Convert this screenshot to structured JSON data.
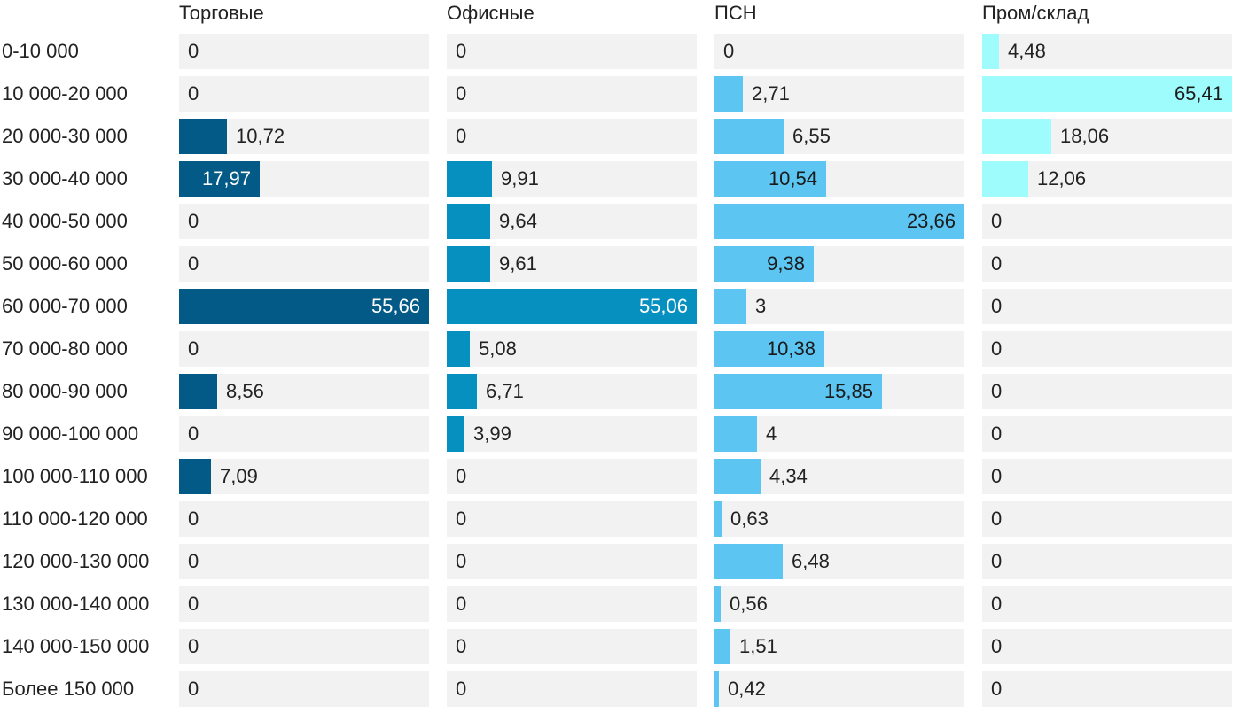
{
  "chart_data": {
    "type": "bar",
    "orientation": "horizontal",
    "layout": "small-multiples",
    "categories": [
      "0-10 000",
      "10 000-20 000",
      "20 000-30 000",
      "30 000-40 000",
      "40 000-50 000",
      "50 000-60 000",
      "60 000-70 000",
      "70 000-80 000",
      "80 000-90 000",
      "90 000-100 000",
      "100 000-110 000",
      "110 000-120 000",
      "120 000-130 000",
      "130 000-140 000",
      "140 000-150 000",
      "Более 150 000"
    ],
    "series": [
      {
        "name": "Торговые",
        "color": "#035a86",
        "values": [
          0,
          0,
          10.72,
          17.97,
          0,
          0,
          55.66,
          0,
          8.56,
          0,
          7.09,
          0,
          0,
          0,
          0,
          0
        ],
        "labels": [
          "0",
          "0",
          "10,72",
          "17,97",
          "0",
          "0",
          "55,66",
          "0",
          "8,56",
          "0",
          "7,09",
          "0",
          "0",
          "0",
          "0",
          "0"
        ],
        "xlim": [
          0,
          55.66
        ]
      },
      {
        "name": "Офисные",
        "color": "#0590bf",
        "values": [
          0,
          0,
          0,
          9.91,
          9.64,
          9.61,
          55.06,
          5.08,
          6.71,
          3.99,
          0,
          0,
          0,
          0,
          0,
          0
        ],
        "labels": [
          "0",
          "0",
          "0",
          "9,91",
          "9,64",
          "9,61",
          "55,06",
          "5,08",
          "6,71",
          "3,99",
          "0",
          "0",
          "0",
          "0",
          "0",
          "0"
        ],
        "xlim": [
          0,
          55.06
        ]
      },
      {
        "name": "ПСН",
        "color": "#5cc5f2",
        "values": [
          0,
          2.71,
          6.55,
          10.54,
          23.66,
          9.38,
          3,
          10.38,
          15.85,
          4,
          4.34,
          0.63,
          6.48,
          0.56,
          1.51,
          0.42
        ],
        "labels": [
          "0",
          "2,71",
          "6,55",
          "10,54",
          "23,66",
          "9,38",
          "3",
          "10,38",
          "15,85",
          "4",
          "4,34",
          "0,63",
          "6,48",
          "0,56",
          "1,51",
          "0,42"
        ],
        "xlim": [
          0,
          23.66
        ]
      },
      {
        "name": "Пром/склад",
        "color": "#9ffcfc",
        "values": [
          4.48,
          65.41,
          18.06,
          12.06,
          0,
          0,
          0,
          0,
          0,
          0,
          0,
          0,
          0,
          0,
          0,
          0
        ],
        "labels": [
          "4,48",
          "65,41",
          "18,06",
          "12,06",
          "0",
          "0",
          "0",
          "0",
          "0",
          "0",
          "0",
          "0",
          "0",
          "0",
          "0",
          "0"
        ],
        "xlim": [
          0,
          65.41
        ]
      }
    ],
    "title": "",
    "xlabel": "",
    "ylabel": "",
    "grid": false,
    "legend": "none"
  }
}
